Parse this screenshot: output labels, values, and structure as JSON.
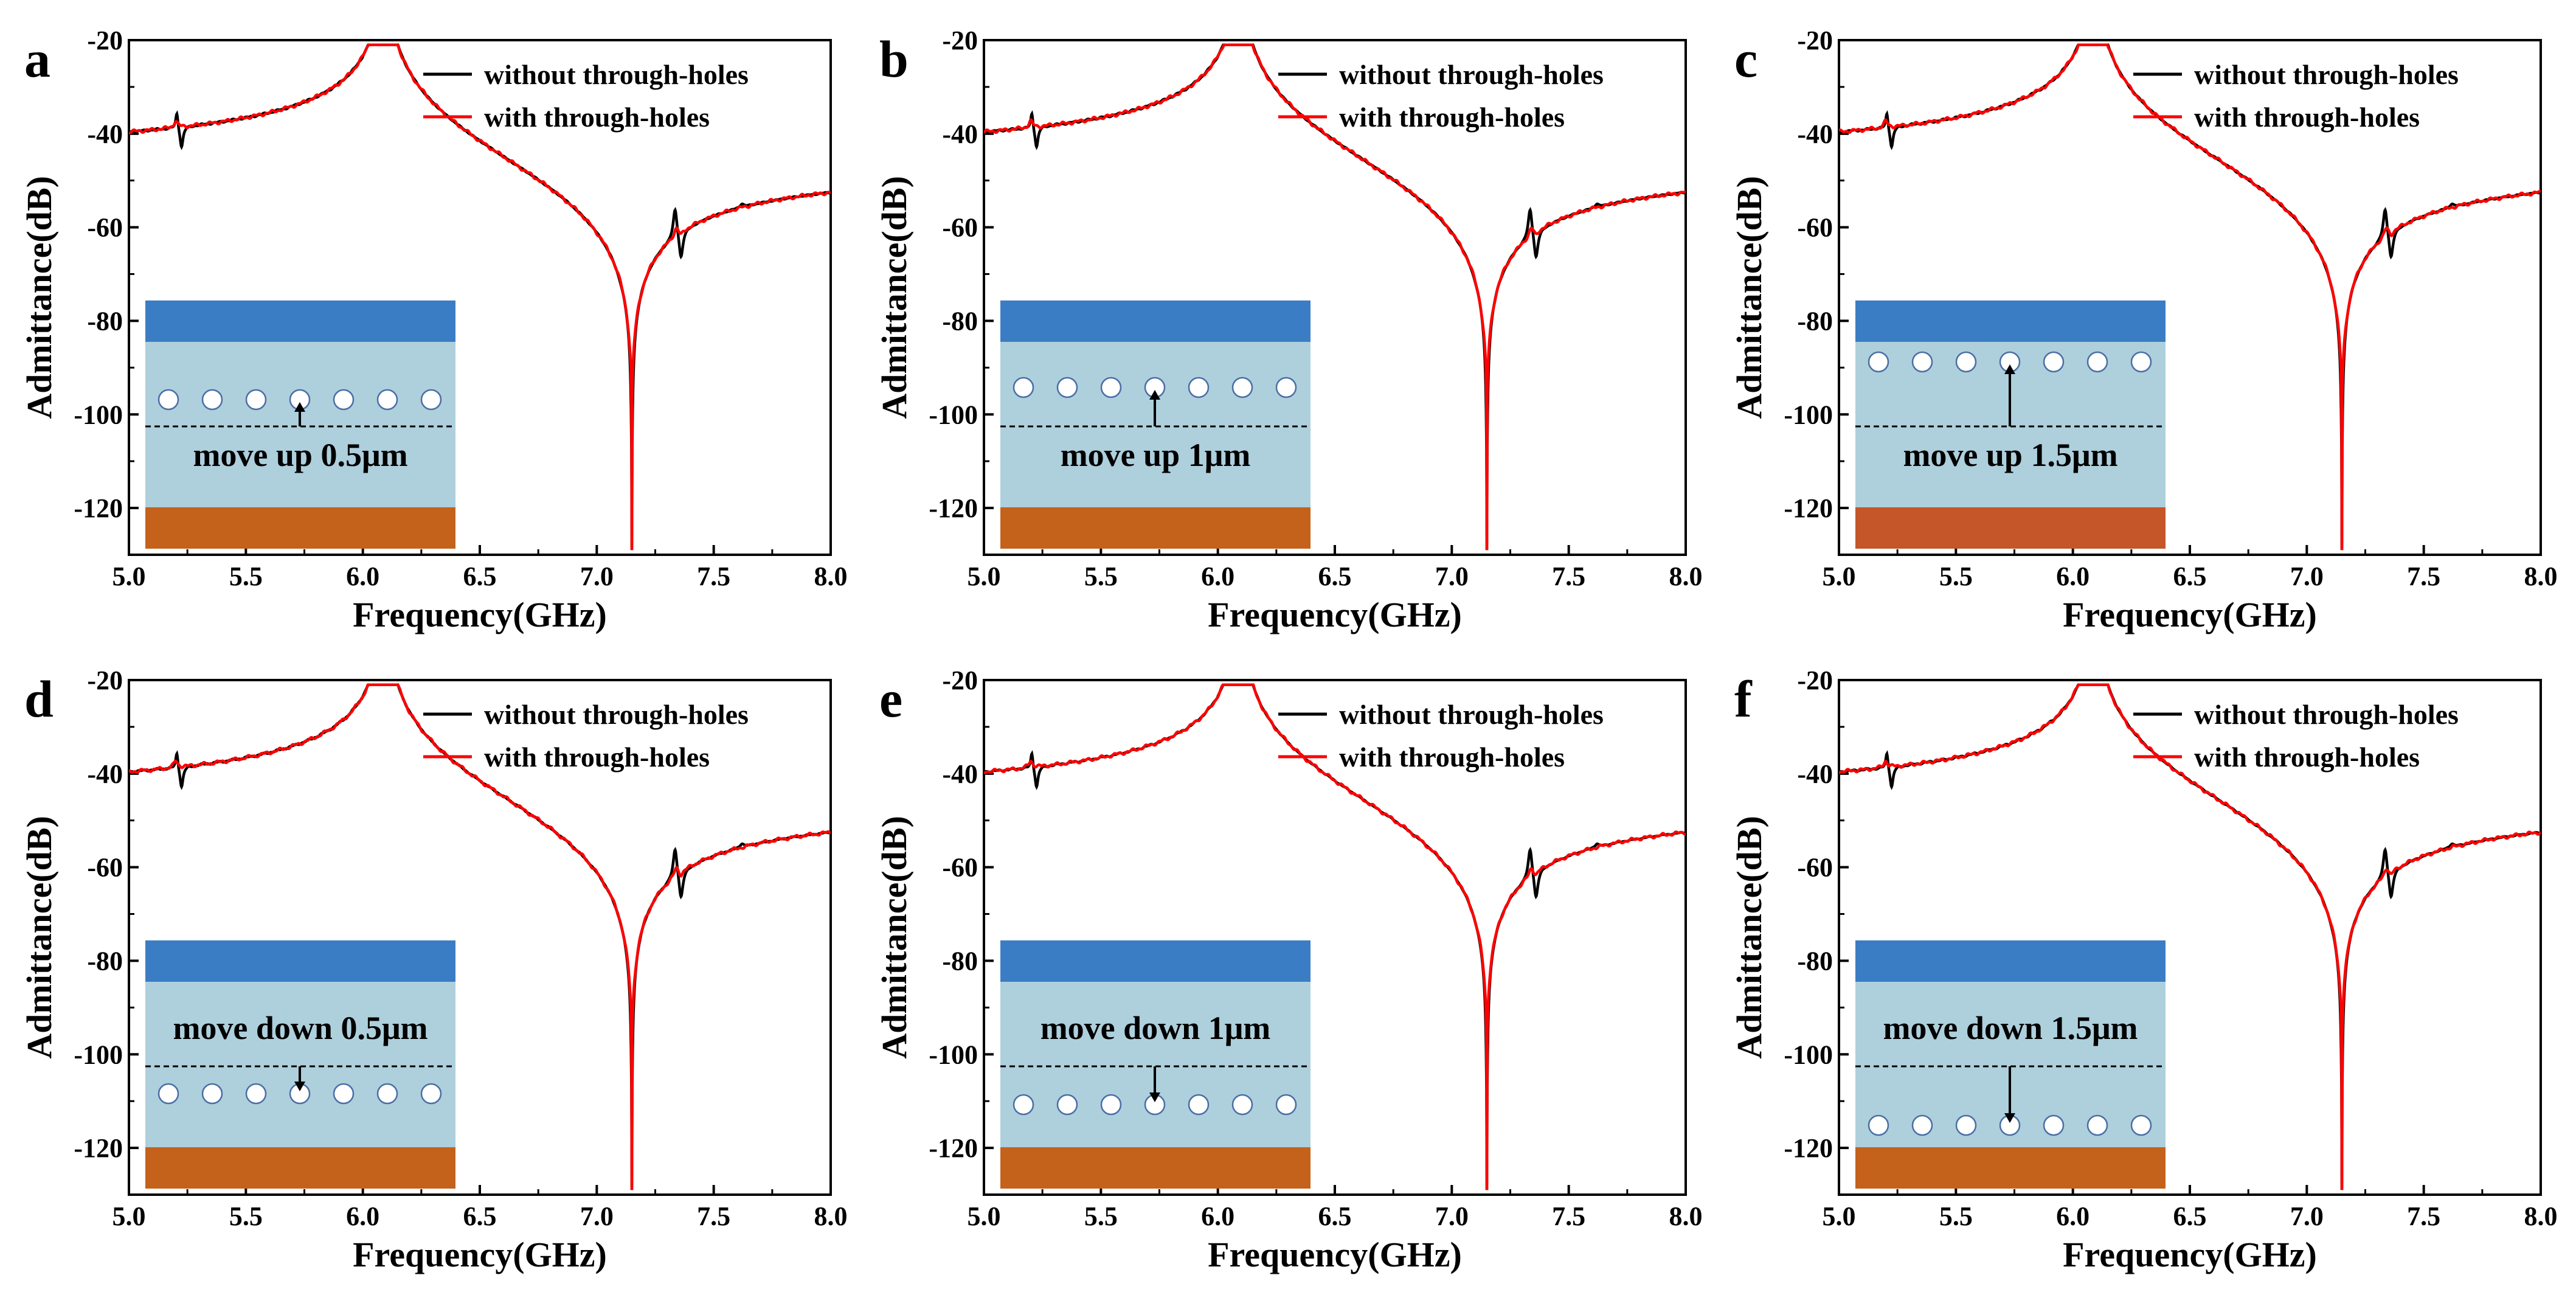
{
  "figure": {
    "xlabel": "Frequency(GHz)",
    "ylabel": "Admittance(dB)",
    "colors": {
      "without": "#000000",
      "with": "#ff0000",
      "electrode": "#3a7dc4",
      "film": "#aecfdc",
      "substrate": "#c4621c",
      "substrate_c": "#c4562a",
      "hole_fill": "#ffffff",
      "hole_edge": "#4a6fa5"
    }
  },
  "chart_data": [
    {
      "panel": "a",
      "type": "line",
      "xlabel": "Frequency(GHz)",
      "ylabel": "Admittance(dB)",
      "xlim": [
        5.0,
        8.0
      ],
      "ylim": [
        -130,
        -20
      ],
      "xticks": [
        "5.0",
        "5.5",
        "6.0",
        "6.5",
        "7.0",
        "7.5",
        "8.0"
      ],
      "yticks": [
        "-20",
        "-40",
        "-60",
        "-80",
        "-100",
        "-120"
      ],
      "series": [
        {
          "name": "without through-holes"
        },
        {
          "name": "with through-holes"
        }
      ],
      "resonance_ghz": 6.09,
      "antiresonance_ghz": 7.15,
      "inset": {
        "label": "move up 0.5μm",
        "direction": "up",
        "offset_um": 0.5
      }
    },
    {
      "panel": "b",
      "type": "line",
      "xlabel": "Frequency(GHz)",
      "ylabel": "Admittance(dB)",
      "xlim": [
        5.0,
        8.0
      ],
      "ylim": [
        -130,
        -20
      ],
      "xticks": [
        "5.0",
        "5.5",
        "6.0",
        "6.5",
        "7.0",
        "7.5",
        "8.0"
      ],
      "yticks": [
        "-20",
        "-40",
        "-60",
        "-80",
        "-100",
        "-120"
      ],
      "series": [
        {
          "name": "without through-holes"
        },
        {
          "name": "with through-holes"
        }
      ],
      "resonance_ghz": 6.09,
      "antiresonance_ghz": 7.15,
      "inset": {
        "label": "move up 1μm",
        "direction": "up",
        "offset_um": 1.0
      }
    },
    {
      "panel": "c",
      "type": "line",
      "xlabel": "Frequency(GHz)",
      "ylabel": "Admittance(dB)",
      "xlim": [
        5.0,
        8.0
      ],
      "ylim": [
        -130,
        -20
      ],
      "xticks": [
        "5.0",
        "5.5",
        "6.0",
        "6.5",
        "7.0",
        "7.5",
        "8.0"
      ],
      "yticks": [
        "-20",
        "-40",
        "-60",
        "-80",
        "-100",
        "-120"
      ],
      "series": [
        {
          "name": "without through-holes"
        },
        {
          "name": "with through-holes"
        }
      ],
      "resonance_ghz": 6.09,
      "antiresonance_ghz": 7.15,
      "inset": {
        "label": "move up 1.5μm",
        "direction": "up",
        "offset_um": 1.5
      }
    },
    {
      "panel": "d",
      "type": "line",
      "xlabel": "Frequency(GHz)",
      "ylabel": "Admittance(dB)",
      "xlim": [
        5.0,
        8.0
      ],
      "ylim": [
        -130,
        -20
      ],
      "xticks": [
        "5.0",
        "5.5",
        "6.0",
        "6.5",
        "7.0",
        "7.5",
        "8.0"
      ],
      "yticks": [
        "-20",
        "-40",
        "-60",
        "-80",
        "-100",
        "-120"
      ],
      "series": [
        {
          "name": "without through-holes"
        },
        {
          "name": "with through-holes"
        }
      ],
      "resonance_ghz": 6.09,
      "antiresonance_ghz": 7.15,
      "inset": {
        "label": "move down 0.5μm",
        "direction": "down",
        "offset_um": 0.5
      }
    },
    {
      "panel": "e",
      "type": "line",
      "xlabel": "Frequency(GHz)",
      "ylabel": "Admittance(dB)",
      "xlim": [
        5.0,
        8.0
      ],
      "ylim": [
        -130,
        -20
      ],
      "xticks": [
        "5.0",
        "5.5",
        "6.0",
        "6.5",
        "7.0",
        "7.5",
        "8.0"
      ],
      "yticks": [
        "-20",
        "-40",
        "-60",
        "-80",
        "-100",
        "-120"
      ],
      "series": [
        {
          "name": "without through-holes"
        },
        {
          "name": "with through-holes"
        }
      ],
      "resonance_ghz": 6.09,
      "antiresonance_ghz": 7.15,
      "inset": {
        "label": "move down 1μm",
        "direction": "down",
        "offset_um": 1.0
      }
    },
    {
      "panel": "f",
      "type": "line",
      "xlabel": "Frequency(GHz)",
      "ylabel": "Admittance(dB)",
      "xlim": [
        5.0,
        8.0
      ],
      "ylim": [
        -130,
        -20
      ],
      "xticks": [
        "5.0",
        "5.5",
        "6.0",
        "6.5",
        "7.0",
        "7.5",
        "8.0"
      ],
      "yticks": [
        "-20",
        "-40",
        "-60",
        "-80",
        "-100",
        "-120"
      ],
      "series": [
        {
          "name": "without through-holes"
        },
        {
          "name": "with through-holes"
        }
      ],
      "resonance_ghz": 6.09,
      "antiresonance_ghz": 7.15,
      "inset": {
        "label": "move down 1.5μm",
        "direction": "down",
        "offset_um": 1.5
      }
    }
  ]
}
